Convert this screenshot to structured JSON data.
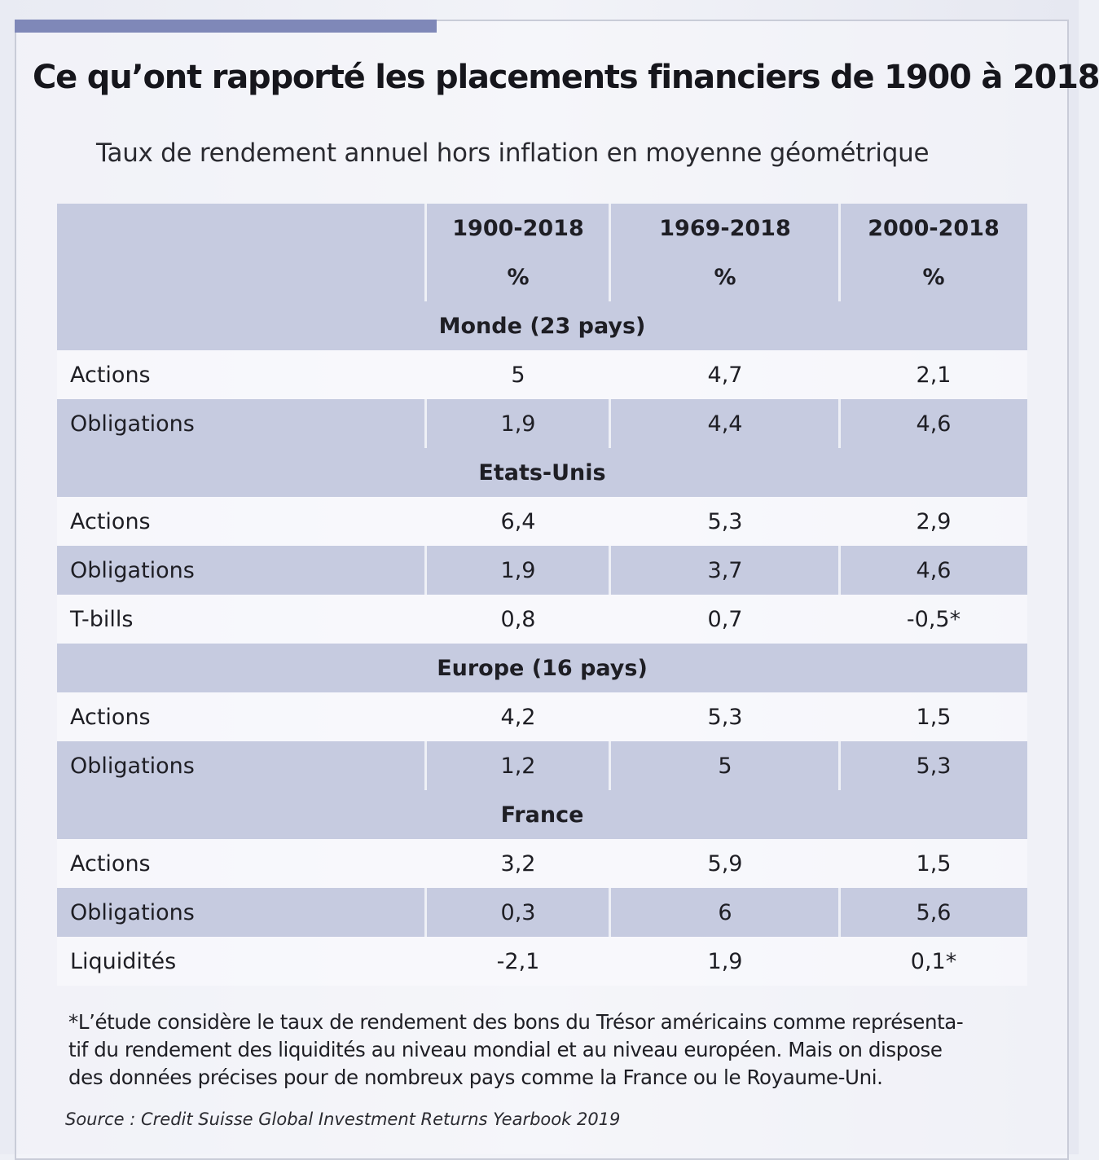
{
  "title": "Ce qu’ont rapporté les placements financiers de 1900 à 2018",
  "subtitle": "Taux de rendement annuel hors inflation en moyenne géométrique",
  "columns": [
    "1900-2018",
    "1969-2018",
    "2000-2018"
  ],
  "units": [
    "%",
    "%",
    "%"
  ],
  "groups": [
    {
      "name": "Monde (23 pays)",
      "rows": [
        {
          "label": "Actions",
          "values": [
            "5",
            "4,7",
            "2,1"
          ]
        },
        {
          "label": "Obligations",
          "values": [
            "1,9",
            "4,4",
            "4,6"
          ]
        }
      ]
    },
    {
      "name": "Etats-Unis",
      "rows": [
        {
          "label": "Actions",
          "values": [
            "6,4",
            "5,3",
            "2,9"
          ]
        },
        {
          "label": "Obligations",
          "values": [
            "1,9",
            "3,7",
            "4,6"
          ]
        },
        {
          "label": "T-bills",
          "values": [
            "0,8",
            "0,7",
            "-0,5*"
          ]
        }
      ]
    },
    {
      "name": "Europe (16 pays)",
      "rows": [
        {
          "label": "Actions",
          "values": [
            "4,2",
            "5,3",
            "1,5"
          ]
        },
        {
          "label": "Obligations",
          "values": [
            "1,2",
            "5",
            "5,3"
          ]
        }
      ]
    },
    {
      "name": "France",
      "rows": [
        {
          "label": "Actions",
          "values": [
            "3,2",
            "5,9",
            "1,5"
          ]
        },
        {
          "label": "Obligations",
          "values": [
            "0,3",
            "6",
            "5,6"
          ]
        },
        {
          "label": "Liquidités",
          "values": [
            "-2,1",
            "1,9",
            "0,1*"
          ]
        }
      ]
    }
  ],
  "footnote_lines": [
    "*L’étude considère le taux de rendement des bons du Trésor américains comme représenta-",
    "tif du rendement des liquidités au niveau mondial et au niveau européen. Mais on dispose",
    "des données précises pour de nombreux pays comme la France ou le Royaume-Uni."
  ],
  "source": "Source : Credit Suisse Global Investment Returns Yearbook 2019"
}
